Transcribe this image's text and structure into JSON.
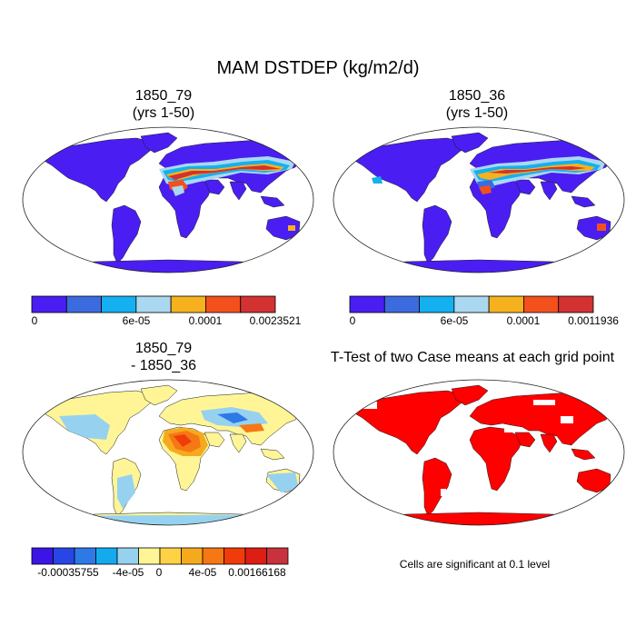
{
  "title": "MAM DSTDEP (kg/m2/d)",
  "panels": [
    {
      "title_line1": "1850_79",
      "title_line2": "(yrs 1-50)",
      "colorbar": {
        "colors": [
          "#4a1ef2",
          "#3c6be0",
          "#14b0f0",
          "#aad8f0",
          "#f5b21e",
          "#f3501e",
          "#d23232"
        ],
        "labels": [
          "0",
          "6e-05",
          "0.0001",
          "0.0023521"
        ]
      }
    },
    {
      "title_line1": "1850_36",
      "title_line2": "(yrs 1-50)",
      "colorbar": {
        "colors": [
          "#4a1ef2",
          "#3c6be0",
          "#14b0f0",
          "#aad8f0",
          "#f5b21e",
          "#f3501e",
          "#d23232"
        ],
        "labels": [
          "0",
          "6e-05",
          "0.0001",
          "0.0011936"
        ]
      }
    },
    {
      "title_line1": "1850_79",
      "title_line2": "- 1850_36",
      "colorbar": {
        "colors": [
          "#3c14e6",
          "#2846e6",
          "#2d7ae6",
          "#14aaf0",
          "#96d2f0",
          "#fff596",
          "#ffd246",
          "#f5aa1e",
          "#f57814",
          "#f03c0a",
          "#dc1e14",
          "#c8323c"
        ],
        "labels": [
          "-0.00035755",
          "-4e-05",
          "0",
          "4e-05",
          "0.00166168"
        ]
      }
    },
    {
      "title_line1": "T-Test of two Case means at each grid point",
      "note": "Cells are significant at 0.1 level"
    }
  ],
  "map_colors": {
    "land_low": "#4a1ef2",
    "ocean": "#ffffff",
    "dust_1": "#14b0f0",
    "dust_2": "#aad8f0",
    "dust_3": "#f5b21e",
    "dust_4": "#f3501e",
    "dust_5": "#d23232",
    "diff_pos": "#fff596",
    "diff_neg": "#96d2f0",
    "sig": "#ff0000"
  }
}
